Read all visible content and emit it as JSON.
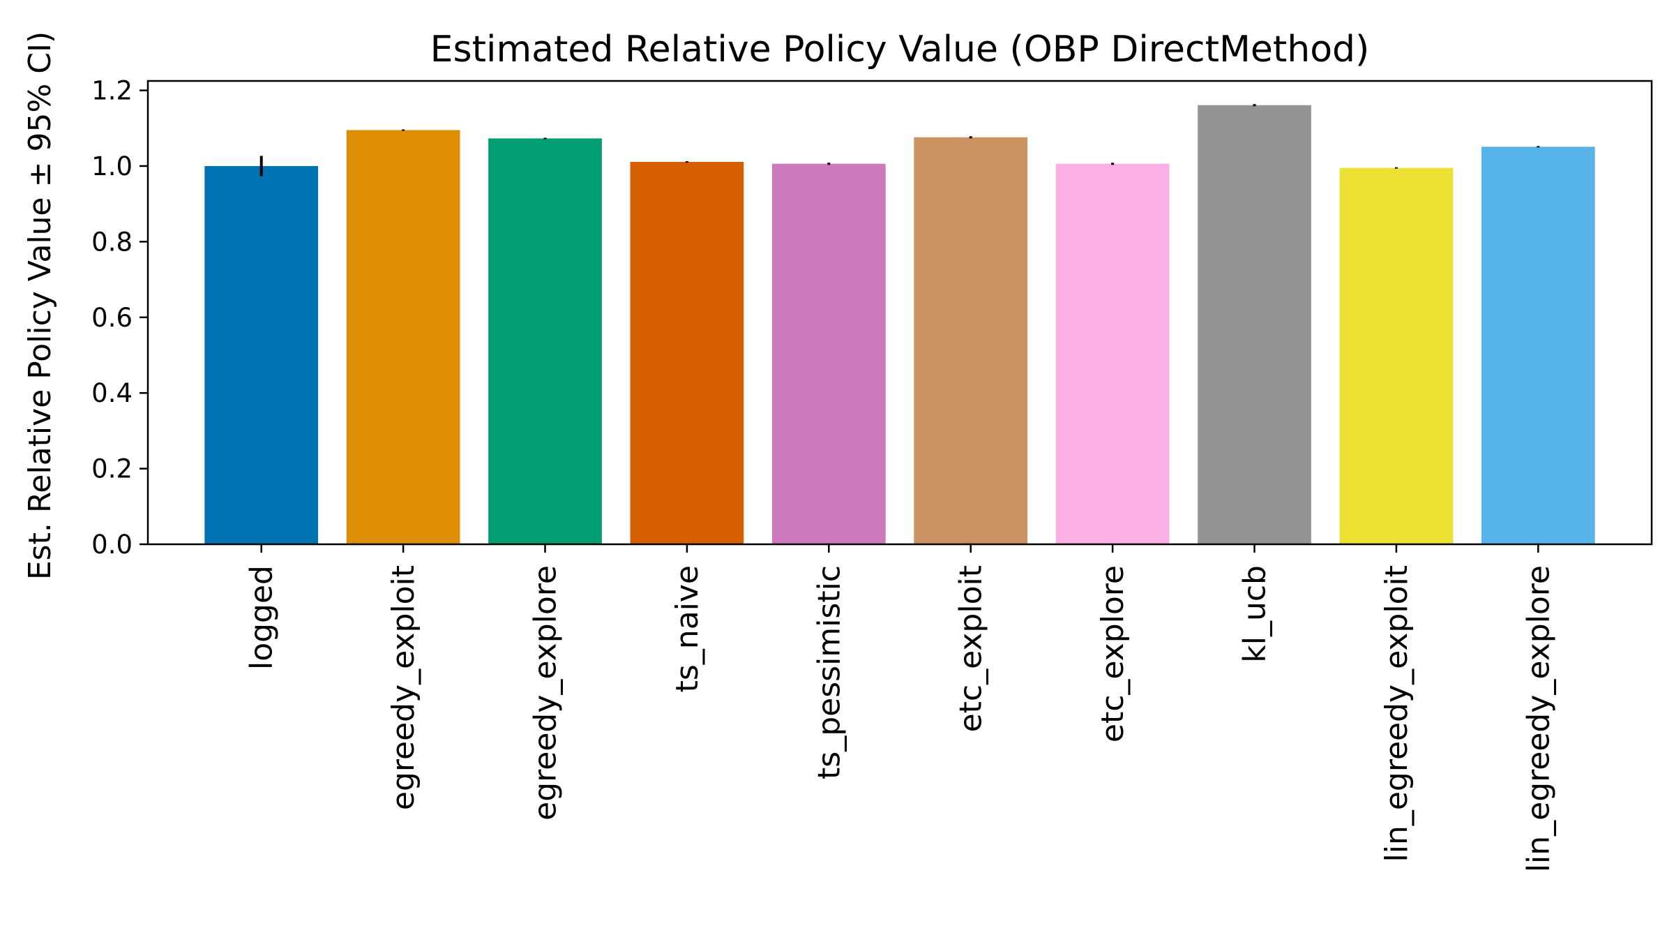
{
  "chart_data": {
    "type": "bar",
    "title": "Estimated Relative Policy Value (OBP DirectMethod)",
    "xlabel": "",
    "ylabel": "Est. Relative Policy Value ± 95% CI)",
    "ylim": [
      0,
      1.225
    ],
    "yticks": [
      "0.0",
      "0.2",
      "0.4",
      "0.6",
      "0.8",
      "1.0",
      "1.2"
    ],
    "ytick_values": [
      0.0,
      0.2,
      0.4,
      0.6,
      0.8,
      1.0,
      1.2
    ],
    "grid": false,
    "legend": "none",
    "categories": [
      "logged",
      "egreedy_exploit",
      "egreedy_explore",
      "ts_naive",
      "ts_pessimistic",
      "etc_exploit",
      "etc_explore",
      "kl_ucb",
      "lin_egreedy_exploit",
      "lin_egreedy_explore"
    ],
    "values": [
      1.0,
      1.095,
      1.073,
      1.011,
      1.006,
      1.076,
      1.006,
      1.161,
      0.995,
      1.051
    ],
    "ci_half_width": [
      0.025,
      0.0,
      0.0,
      0.0,
      0.001,
      0.001,
      0.001,
      0.001,
      0.0,
      0.0
    ],
    "colors": [
      "#0173b2",
      "#de8f05",
      "#029e73",
      "#d55e00",
      "#cc78bc",
      "#ca9161",
      "#fbafe4",
      "#949494",
      "#ece133",
      "#56b4e9"
    ]
  }
}
